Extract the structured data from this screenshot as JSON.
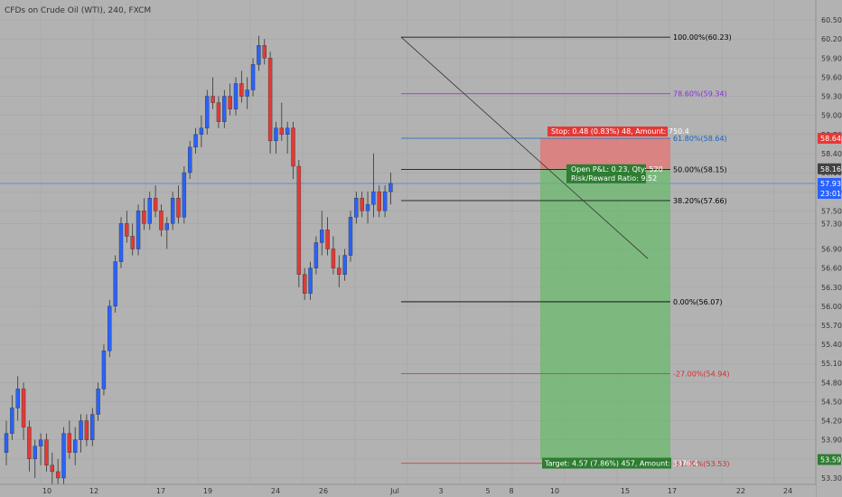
{
  "title": "CFDs on Crude Oil (WTI), 240, FXCM",
  "chart_data": {
    "type": "candlestick",
    "symbol": "CFDs on Crude Oil (WTI)",
    "interval": "240",
    "source": "FXCM",
    "ylim": [
      53.2,
      60.7
    ],
    "y_ticks": [
      60.5,
      60.2,
      59.9,
      59.6,
      59.3,
      59.0,
      58.7,
      58.4,
      58.1,
      57.8,
      57.5,
      57.3,
      56.9,
      56.6,
      56.3,
      56.0,
      55.7,
      55.4,
      55.1,
      54.8,
      54.5,
      54.2,
      53.9,
      53.6,
      53.3
    ],
    "y_tick_labels": [
      "60.50",
      "60.20",
      "59.90",
      "59.60",
      "59.30",
      "59.00",
      "58.70",
      "58.40",
      "58.10",
      "57.80",
      "57.50",
      "57.30",
      "56.90",
      "56.60",
      "56.30",
      "56.00",
      "55.70",
      "55.40",
      "55.10",
      "54.80",
      "54.50",
      "54.20",
      "53.90",
      "53.60",
      "53.30"
    ],
    "x_ticks": [
      "10",
      "12",
      "17",
      "19",
      "24",
      "26",
      "Jul",
      "3",
      "5",
      "8",
      "10",
      "15",
      "17",
      "22",
      "24"
    ],
    "candles": [
      [
        53.7,
        54.2,
        53.5,
        54.0
      ],
      [
        54.0,
        54.6,
        53.9,
        54.4
      ],
      [
        54.4,
        54.9,
        54.2,
        54.7
      ],
      [
        54.7,
        54.8,
        53.9,
        54.1
      ],
      [
        54.1,
        54.2,
        53.4,
        53.6
      ],
      [
        53.6,
        53.9,
        53.3,
        53.8
      ],
      [
        53.8,
        54.0,
        53.5,
        53.9
      ],
      [
        53.9,
        54.0,
        53.4,
        53.5
      ],
      [
        53.5,
        53.7,
        53.2,
        53.4
      ],
      [
        53.4,
        53.6,
        53.2,
        53.3
      ],
      [
        53.3,
        54.1,
        53.2,
        54.0
      ],
      [
        54.0,
        54.2,
        53.6,
        53.7
      ],
      [
        53.7,
        54.1,
        53.5,
        53.9
      ],
      [
        53.9,
        54.3,
        53.7,
        54.2
      ],
      [
        54.2,
        54.3,
        53.8,
        53.9
      ],
      [
        53.9,
        54.4,
        53.8,
        54.3
      ],
      [
        54.3,
        54.8,
        54.2,
        54.7
      ],
      [
        54.7,
        55.4,
        54.6,
        55.3
      ],
      [
        55.3,
        56.1,
        55.2,
        56.0
      ],
      [
        56.0,
        56.8,
        55.9,
        56.7
      ],
      [
        56.7,
        57.4,
        56.6,
        57.3
      ],
      [
        57.3,
        57.5,
        57.0,
        57.1
      ],
      [
        57.1,
        57.3,
        56.8,
        56.9
      ],
      [
        56.9,
        57.6,
        56.8,
        57.5
      ],
      [
        57.5,
        57.7,
        57.2,
        57.3
      ],
      [
        57.3,
        57.8,
        57.2,
        57.7
      ],
      [
        57.7,
        57.9,
        57.4,
        57.5
      ],
      [
        57.5,
        57.6,
        57.1,
        57.2
      ],
      [
        57.2,
        57.4,
        56.9,
        57.3
      ],
      [
        57.3,
        57.8,
        57.2,
        57.7
      ],
      [
        57.7,
        57.9,
        57.3,
        57.4
      ],
      [
        57.4,
        58.2,
        57.3,
        58.1
      ],
      [
        58.1,
        58.6,
        58.0,
        58.5
      ],
      [
        58.5,
        58.8,
        58.4,
        58.7
      ],
      [
        58.7,
        59.0,
        58.5,
        58.8
      ],
      [
        58.8,
        59.4,
        58.7,
        59.3
      ],
      [
        59.3,
        59.6,
        59.1,
        59.2
      ],
      [
        59.2,
        59.3,
        58.8,
        58.9
      ],
      [
        58.9,
        59.4,
        58.8,
        59.3
      ],
      [
        59.3,
        59.5,
        59.0,
        59.1
      ],
      [
        59.1,
        59.6,
        59.0,
        59.5
      ],
      [
        59.5,
        59.7,
        59.2,
        59.3
      ],
      [
        59.3,
        59.6,
        59.1,
        59.4
      ],
      [
        59.4,
        59.9,
        59.3,
        59.8
      ],
      [
        59.8,
        60.25,
        59.7,
        60.1
      ],
      [
        60.1,
        60.2,
        59.8,
        59.9
      ],
      [
        59.9,
        60.0,
        58.4,
        58.6
      ],
      [
        58.6,
        58.9,
        58.4,
        58.8
      ],
      [
        58.8,
        59.2,
        58.6,
        58.7
      ],
      [
        58.7,
        58.9,
        58.4,
        58.8
      ],
      [
        58.8,
        58.9,
        58.0,
        58.2
      ],
      [
        58.2,
        58.3,
        56.3,
        56.5
      ],
      [
        56.5,
        56.6,
        56.1,
        56.2
      ],
      [
        56.2,
        56.7,
        56.1,
        56.6
      ],
      [
        56.6,
        57.1,
        56.5,
        57.0
      ],
      [
        57.0,
        57.5,
        56.8,
        57.2
      ],
      [
        57.2,
        57.4,
        56.8,
        56.9
      ],
      [
        56.9,
        57.1,
        56.5,
        56.6
      ],
      [
        56.6,
        56.8,
        56.3,
        56.5
      ],
      [
        56.5,
        56.9,
        56.4,
        56.8
      ],
      [
        56.8,
        57.5,
        56.7,
        57.4
      ],
      [
        57.4,
        57.8,
        57.3,
        57.7
      ],
      [
        57.7,
        57.8,
        57.4,
        57.5
      ],
      [
        57.5,
        57.8,
        57.3,
        57.6
      ],
      [
        57.6,
        58.4,
        57.4,
        57.8
      ],
      [
        57.8,
        57.9,
        57.4,
        57.5
      ],
      [
        57.5,
        57.9,
        57.4,
        57.8
      ],
      [
        57.8,
        58.1,
        57.6,
        57.93
      ]
    ],
    "fibonacci": [
      {
        "label": "100.00%(60.23)",
        "value": 60.23,
        "color": "#000000"
      },
      {
        "label": "78.60%(59.34)",
        "value": 59.34,
        "color": "#8a2be2"
      },
      {
        "label": "61.80%(58.64)",
        "value": 58.64,
        "color": "#1565c0"
      },
      {
        "label": "50.00%(58.15)",
        "value": 58.15,
        "color": "#000000"
      },
      {
        "label": "38.20%(57.66)",
        "value": 57.66,
        "color": "#000000"
      },
      {
        "label": "0.00%(56.07)",
        "value": 56.07,
        "color": "#000000"
      },
      {
        "label": "-27.00%(54.94)",
        "value": 54.94,
        "color": "#d32f2f"
      },
      {
        "label": "-61.00%(53.53)",
        "value": 53.53,
        "color": "#d32f2f"
      }
    ],
    "position": {
      "type": "short",
      "entry": 58.16,
      "stop": 58.64,
      "target": 53.59,
      "stop_label": "Stop: 0.48 (0.83%) 48, Amount: 750.4",
      "pnl_label_line1": "Open P&L: 0.23, Qty: 520",
      "pnl_label_line2": "Risk/Reward Ratio: 9.52",
      "target_label": "Target: 4.57 (7.86%) 457, Amount: 3376.4"
    },
    "price_labels": [
      {
        "text": "58.64",
        "value": 58.64,
        "color": "#e53935"
      },
      {
        "text": "58.16",
        "value": 58.16,
        "color": "#424242"
      },
      {
        "text": "57.93",
        "value": 57.93,
        "color": "#2962ff"
      },
      {
        "text": "23:01",
        "value": 57.66,
        "color": "#2962ff"
      },
      {
        "text": "53.59",
        "value": 53.59,
        "color": "#2e7d32"
      }
    ],
    "current_price": 57.93,
    "colors": {
      "up": "#2962ff",
      "down": "#e53935",
      "grid": "#a6a6a6",
      "bg": "#b2b2b2"
    }
  }
}
